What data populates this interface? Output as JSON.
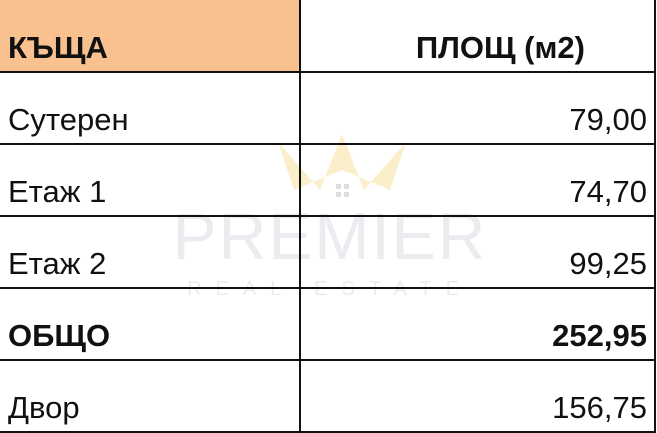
{
  "table": {
    "header": {
      "col1": "КЪЩА",
      "col2": "ПЛОЩ (м2)"
    },
    "rows": [
      {
        "label": "Сутерен",
        "value": "79,00",
        "bold": false
      },
      {
        "label": "Етаж 1",
        "value": "74,70",
        "bold": false
      },
      {
        "label": "Етаж 2",
        "value": "99,25",
        "bold": false
      },
      {
        "label": "ОБЩО",
        "value": "252,95",
        "bold": true
      },
      {
        "label": "Двор",
        "value": "156,75",
        "bold": false
      }
    ]
  },
  "watermark": {
    "brand": "PREMIER",
    "tagline": "REAL ESTATE"
  },
  "colors": {
    "header_fill": "#f8c18f",
    "grid": "#111111"
  }
}
